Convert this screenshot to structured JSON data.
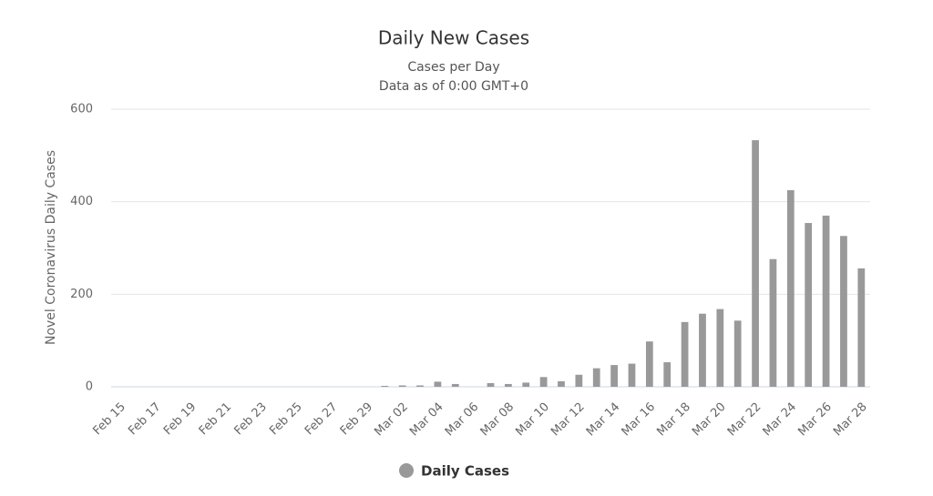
{
  "chart_data": {
    "type": "bar",
    "title": "Daily New Cases",
    "subtitle": [
      "Cases per Day",
      "Data as of 0:00 GMT+0"
    ],
    "y_label": "Novel Coronavirus Daily Cases",
    "categories": [
      "Feb 15",
      null,
      "Feb 17",
      null,
      "Feb 19",
      null,
      "Feb 21",
      null,
      "Feb 23",
      null,
      "Feb 25",
      null,
      "Feb 27",
      null,
      "Feb 29",
      null,
      "Mar 02",
      null,
      "Mar 04",
      null,
      "Mar 06",
      null,
      "Mar 08",
      null,
      "Mar 10",
      null,
      "Mar 12",
      null,
      "Mar 14",
      null,
      "Mar 16",
      null,
      "Mar 18",
      null,
      "Mar 20",
      null,
      "Mar 22",
      null,
      "Mar 24",
      null,
      "Mar 26",
      null,
      "Mar 28"
    ],
    "series": [
      {
        "name": "Daily Cases",
        "color": "#999999",
        "values": [
          0,
          0,
          0,
          0,
          0,
          0,
          0,
          0,
          0,
          0,
          0,
          0,
          0,
          0,
          0,
          2,
          3,
          3,
          11,
          6,
          0,
          8,
          6,
          9,
          21,
          12,
          26,
          40,
          47,
          50,
          98,
          53,
          140,
          158,
          168,
          143,
          533,
          276,
          425,
          354,
          370,
          326,
          256
        ]
      }
    ],
    "ylim": [
      0,
      600
    ],
    "yticks": [
      0,
      200,
      400,
      600
    ],
    "grid": true,
    "legend": "bottom"
  }
}
